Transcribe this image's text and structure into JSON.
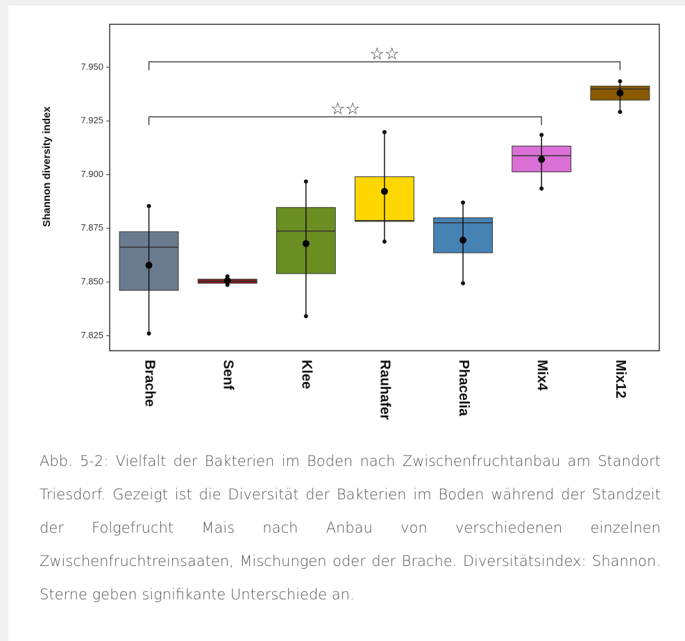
{
  "chart_data": {
    "type": "box",
    "y_label": "Shannon diversity index",
    "categories": [
      "Brache",
      "Senf",
      "Klee",
      "Rauhafer",
      "Phacelia",
      "Mix4",
      "Mix12"
    ],
    "colors": [
      "#6b7b8f",
      "#8b1a1a",
      "#6b8e23",
      "#ffd700",
      "#4682b4",
      "#da70d6",
      "#8b5a00"
    ],
    "boxes": [
      {
        "min": 7.826,
        "q1": 7.8461,
        "median": 7.8662,
        "q3": 7.8734,
        "max": 7.8854,
        "mean": 7.8578
      },
      {
        "min": 7.8487,
        "q1": 7.8494,
        "median": 7.8503,
        "q3": 7.8513,
        "max": 7.8526,
        "mean": 7.8506
      },
      {
        "min": 7.8341,
        "q1": 7.8539,
        "median": 7.8737,
        "q3": 7.8847,
        "max": 7.8968,
        "mean": 7.8679
      },
      {
        "min": 7.8688,
        "q1": 7.8782,
        "median": 7.8786,
        "q3": 7.899,
        "max": 7.9198,
        "mean": 7.8922
      },
      {
        "min": 7.8494,
        "q1": 7.8636,
        "median": 7.8776,
        "q3": 7.8799,
        "max": 7.887,
        "mean": 7.8695
      },
      {
        "min": 7.8935,
        "q1": 7.9013,
        "median": 7.9088,
        "q3": 7.9133,
        "max": 7.9185,
        "mean": 7.9071
      },
      {
        "min": 7.9292,
        "q1": 7.9347,
        "median": 7.9399,
        "q3": 7.9412,
        "max": 7.9435,
        "mean": 7.938
      }
    ],
    "ylim": [
      7.818,
      7.97
    ],
    "yticks": [
      7.825,
      {
        "value": 7.85,
        "label": "7.850"
      },
      7.875,
      {
        "value": 7.9,
        "label": "7.900"
      },
      7.925,
      {
        "value": 7.95,
        "label": "7.950"
      }
    ],
    "grid": false,
    "brackets": [
      {
        "from": "Brache",
        "to": "Mix4",
        "label": "☆☆"
      },
      {
        "from": "Brache",
        "to": "Mix12",
        "label": "☆☆"
      }
    ],
    "caption": "Abb. 5-2: Vielfalt der Bakterien im Boden nach Zwischenfruchtanbau am Standort Triesdorf. Gezeigt ist die Diversität der Bakterien im Boden während der Standzeit der Folgefrucht Mais nach Anbau von verschiedenen einzelnen Zwischenfruchtreinsaaten, Mischungen oder der Brache. Diversitätsindex: Shannon. Sterne geben signifikante Unterschiede an."
  }
}
